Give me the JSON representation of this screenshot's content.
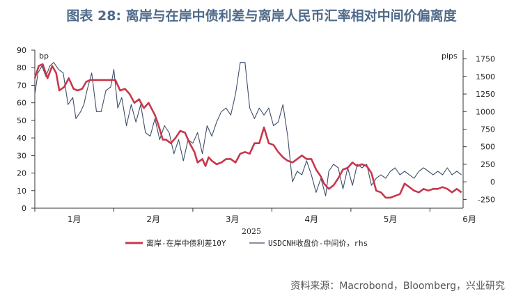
{
  "title": "图表 28: 离岸与在岸中债利差与离岸人民币汇率相对中间价偏离度",
  "source": "资料来源：Macrobond，Bloomberg，兴业研究",
  "chart_data": {
    "type": "line",
    "left_unit": "bp",
    "right_unit": "pips",
    "year_label": "2025",
    "ylim_left": [
      0,
      90
    ],
    "yticks_left": [
      0,
      10,
      20,
      30,
      40,
      50,
      60,
      70,
      80,
      90
    ],
    "ylim_right": [
      -375,
      1875
    ],
    "yticks_right": [
      -250,
      0,
      250,
      500,
      750,
      1000,
      1250,
      1500,
      1750
    ],
    "xlim": [
      0,
      5.42
    ],
    "month_ticks": [
      0,
      1,
      2,
      3,
      4,
      5
    ],
    "month_labels": [
      "1月",
      "2月",
      "3月",
      "4月",
      "5月",
      "6月"
    ],
    "colors": {
      "spread": "#c8374b",
      "usdcnh": "#3d4e6b"
    },
    "series": [
      {
        "name": "离岸-在岸中债利差10Y",
        "axis": "left",
        "x": [
          0,
          0.05,
          0.1,
          0.16,
          0.22,
          0.27,
          0.31,
          0.37,
          0.43,
          0.49,
          0.54,
          0.6,
          0.65,
          0.7,
          0.78,
          0.84,
          0.9,
          0.96,
          1.02,
          1.08,
          1.14,
          1.2,
          1.26,
          1.32,
          1.38,
          1.44,
          1.52,
          1.56,
          1.62,
          1.66,
          1.72,
          1.78,
          1.84,
          1.9,
          1.96,
          2.02,
          2.06,
          2.12,
          2.16,
          2.2,
          2.24,
          2.3,
          2.36,
          2.42,
          2.48,
          2.54,
          2.6,
          2.66,
          2.72,
          2.78,
          2.84,
          2.9,
          2.96,
          3.02,
          3.08,
          3.14,
          3.2,
          3.26,
          3.32,
          3.38,
          3.44,
          3.5,
          3.56,
          3.62,
          3.66,
          3.72,
          3.78,
          3.84,
          3.9,
          3.96,
          4.02,
          4.08,
          4.14,
          4.2,
          4.26,
          4.32,
          4.38,
          4.44,
          4.5,
          4.56,
          4.62,
          4.68,
          4.74,
          4.8,
          4.86,
          4.92,
          4.98,
          5.04,
          5.1,
          5.16,
          5.22,
          5.28,
          5.34,
          5.4
        ],
        "y": [
          74,
          81,
          82,
          74,
          81,
          77,
          67,
          69,
          74,
          68,
          67,
          68,
          72,
          73,
          73,
          73,
          73,
          73,
          73,
          67,
          68,
          65,
          60,
          62,
          57,
          60,
          53,
          48,
          39,
          39,
          37,
          40,
          44,
          43,
          37,
          32,
          26,
          28,
          24,
          29,
          27,
          25,
          26,
          28,
          28,
          26,
          31,
          32,
          31,
          37,
          37,
          46,
          37,
          36,
          32,
          29,
          27,
          26,
          28,
          30,
          28,
          28,
          22,
          18,
          14,
          11,
          13,
          17,
          22,
          23,
          26,
          24,
          25,
          24,
          20,
          10,
          9,
          6,
          6,
          7,
          8,
          14,
          12,
          10,
          9,
          11,
          10,
          11,
          11,
          12,
          11,
          9,
          11,
          9
        ]
      },
      {
        "name": "USDCNH收盘价-中间价，rhs",
        "axis": "right",
        "x": [
          0,
          0.04,
          0.09,
          0.14,
          0.19,
          0.24,
          0.3,
          0.36,
          0.42,
          0.48,
          0.52,
          0.58,
          0.62,
          0.66,
          0.72,
          0.78,
          0.84,
          0.9,
          0.96,
          1.0,
          1.05,
          1.1,
          1.16,
          1.22,
          1.28,
          1.34,
          1.4,
          1.46,
          1.52,
          1.58,
          1.64,
          1.7,
          1.76,
          1.82,
          1.88,
          1.94,
          2.0,
          2.06,
          2.12,
          2.18,
          2.24,
          2.3,
          2.36,
          2.42,
          2.48,
          2.54,
          2.6,
          2.66,
          2.72,
          2.78,
          2.84,
          2.9,
          2.96,
          3.02,
          3.08,
          3.14,
          3.2,
          3.26,
          3.32,
          3.38,
          3.44,
          3.5,
          3.56,
          3.62,
          3.68,
          3.72,
          3.78,
          3.84,
          3.9,
          3.96,
          4.02,
          4.08,
          4.14,
          4.2,
          4.26,
          4.32,
          4.38,
          4.44,
          4.5,
          4.56,
          4.62,
          4.68,
          4.74,
          4.8,
          4.86,
          4.92,
          4.98,
          5.04,
          5.1,
          5.16,
          5.22,
          5.28,
          5.34,
          5.4
        ],
        "y": [
          1250,
          1550,
          1650,
          1500,
          1650,
          1700,
          1600,
          1550,
          1100,
          1200,
          900,
          1000,
          1100,
          1300,
          1550,
          1000,
          1000,
          1300,
          1350,
          1600,
          1050,
          1200,
          800,
          1100,
          850,
          1100,
          700,
          650,
          900,
          600,
          800,
          700,
          400,
          600,
          300,
          600,
          550,
          700,
          400,
          800,
          650,
          850,
          1000,
          1050,
          950,
          1250,
          1700,
          1700,
          1050,
          900,
          1050,
          950,
          1050,
          800,
          850,
          1100,
          650,
          0,
          150,
          100,
          300,
          100,
          -150,
          50,
          -200,
          150,
          250,
          200,
          -100,
          200,
          -50,
          250,
          200,
          250,
          -50,
          50,
          100,
          50,
          150,
          200,
          100,
          150,
          100,
          50,
          150,
          200,
          150,
          100,
          150,
          100,
          200,
          100,
          150,
          100
        ]
      }
    ]
  }
}
